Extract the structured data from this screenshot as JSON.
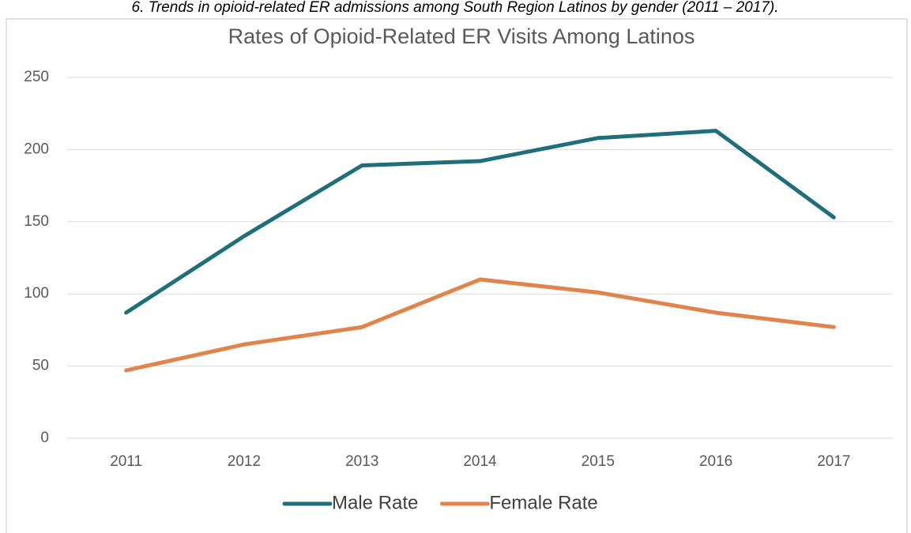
{
  "caption": "6. Trends in opioid-related ER admissions among South Region Latinos by gender (2011 – 2017).",
  "chart_data": {
    "type": "line",
    "title": "Rates of Opioid-Related ER Visits Among Latinos",
    "categories": [
      "2011",
      "2012",
      "2013",
      "2014",
      "2015",
      "2016",
      "2017"
    ],
    "series": [
      {
        "name": "Male Rate",
        "color": "#1f6e7b",
        "values": [
          87,
          140,
          189,
          192,
          208,
          213,
          153
        ]
      },
      {
        "name": "Female Rate",
        "color": "#e0844c",
        "values": [
          47,
          65,
          77,
          110,
          101,
          87,
          77
        ]
      }
    ],
    "ylim": [
      0,
      250
    ],
    "yticks": [
      0,
      50,
      100,
      150,
      200,
      250
    ],
    "grid": true,
    "legend": "bottom"
  }
}
